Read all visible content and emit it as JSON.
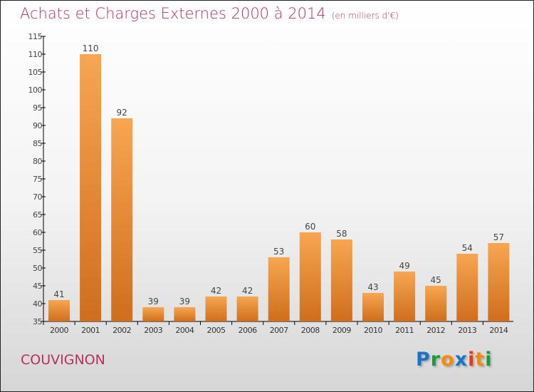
{
  "chart_data": {
    "type": "bar",
    "title": "Achats et Charges Externes 2000 à 2014",
    "subtitle": "(en milliers d'€)",
    "categories": [
      "2000",
      "2001",
      "2002",
      "2003",
      "2004",
      "2005",
      "2006",
      "2007",
      "2008",
      "2009",
      "2010",
      "2011",
      "2012",
      "2013",
      "2014"
    ],
    "values": [
      41,
      110,
      92,
      39,
      39,
      42,
      42,
      53,
      60,
      58,
      43,
      49,
      45,
      54,
      57
    ],
    "ylim": [
      35,
      115
    ],
    "yticks": [
      35,
      40,
      45,
      50,
      55,
      60,
      65,
      70,
      75,
      80,
      85,
      90,
      95,
      100,
      105,
      110,
      115
    ],
    "xlabel": "",
    "ylabel": "",
    "bar_color_top": "#f7a651",
    "bar_color_bottom": "#cf6e1c"
  },
  "footer": {
    "city": "COUVIGNON",
    "logo": [
      "P",
      "r",
      "o",
      "x",
      "i",
      "t",
      "i"
    ],
    "logo_colors": [
      "#1a73c8",
      "#1a9a3a",
      "#f58a0b",
      "#1a73c8",
      "#e53a1a",
      "#f58a0b",
      "#1a9a3a"
    ]
  }
}
